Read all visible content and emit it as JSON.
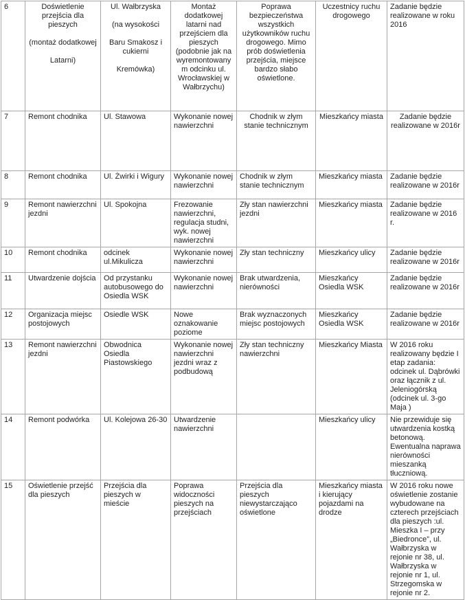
{
  "colors": {
    "table_border": "#a6a6a6",
    "text": "#232323",
    "background": "#ffffff"
  },
  "table": {
    "rows": [
      {
        "cells": [
          "6",
          "Doświetlenie przejścia dla pieszych\n\n(montaż dodatkowej\n\nLatarni)",
          "Ul. Wałbrzyska\n\n(na wysokości\n\nBaru Smakosz i cukierni\n\nKremówka)",
          "Montaż dodatkowej latarni nad przejściem dla pieszych (podobnie jak na wyremontowanym odcinku ul. Wrocławskiej w Wałbrzychu)",
          "Poprawa bezpieczeństwa wszystkich użytkowników ruchu drogowego. Mimo prób doświetlenia przejścia, miejsce bardzo słabo oświetlone.",
          "Uczestnicy ruchu drogowego",
          "Zadanie będzie realizowane w roku 2016"
        ]
      },
      {
        "cells": [
          "7",
          "Remont chodnika",
          "Ul. Stawowa",
          "Wykonanie nowej nawierzchni",
          "Chodnik w złym stanie technicznym",
          "Mieszkańcy miasta",
          "Zadanie będzie realizowane w 2016r"
        ]
      },
      {
        "cells": [
          "8",
          "Remont chodnika",
          "Ul. Żwirki i Wigury",
          "Wykonanie nowej nawierzchni",
          "Chodnik w złym stanie technicznym",
          "Mieszkańcy miasta",
          "Zadanie będzie realizowane w 2016r"
        ]
      },
      {
        "cells": [
          "9",
          "Remont nawierzchni jezdni",
          "Ul. Spokojna",
          "Frezowanie nawierzchni, regulacja studni, wyk. nowej nawierzchni",
          "Zły stan nawierzchni jezdni",
          "Mieszkańcy miasta",
          "Zadanie będzie realizowane w 2016 r."
        ]
      },
      {
        "cells": [
          "10",
          "Remont chodnika",
          "odcinek ul.Mikulicza",
          "Wykonanie nowej nawierzchni",
          "Zły stan techniczny",
          "Mieszkańcy ulicy",
          "Zadanie będzie realizowane w 2016r"
        ]
      },
      {
        "cells": [
          "11",
          "Utwardzenie dojścia",
          "Od przystanku autobusowego do Osiedla WSK",
          "Wykonanie nowej nawierzchni",
          "Brak utwardzenia, nierówności",
          "Mieszkańcy Osiedla WSK",
          "Zadanie będzie realizowane w 2016r"
        ]
      },
      {
        "cells": [
          "12",
          "Organizacja miejsc postojowych",
          "Osiedle WSK",
          "Nowe oznakowanie poziome",
          "Brak wyznaczonych miejsc postojowych",
          "Mieszkańcy Osiedla WSK",
          "Zadanie będzie realizowane w 2016r"
        ]
      },
      {
        "cells": [
          "13",
          "Remont nawierzchni jezdni",
          "Obwodnica Osiedla Piastowskiego",
          "Wykonanie nowej nawierzchni jezdni wraz z podbudową",
          "Zły stan techniczny nawierzchni",
          "Mieszkańcy Miasta",
          "W 2016 roku realizowany będzie I etap zadania: odcinek ul. Dąbrówki oraz łącznik z ul. Jeleniogórską (odcinek ul. 3-go Maja )"
        ]
      },
      {
        "cells": [
          "14",
          "Remont podwórka",
          "Ul. Kolejowa 26-30",
          "Utwardzenie nawierzchni",
          "",
          "Mieszkańcy ulicy",
          "Nie przewiduje się utwardzenia kostką betonową.\nEwentualna naprawa nierówności mieszanką tłuczniową."
        ]
      },
      {
        "cells": [
          "15",
          "Oświetlenie przejść dla pieszych",
          "Przejścia dla pieszych w mieście",
          "Poprawa widoczności pieszych na przejściach",
          "Przejścia dla pieszych niewystarczająco oświetlone",
          "Mieszkańcy miasta i kierujący pojazdami na drodze",
          "W 2016 roku nowe oświetlenie zostanie wybudowane na czterech przejściach dla pieszych :ul. Mieszka I – przy „Biedronce”, ul. Wałbrzyska w rejonie nr 38, ul. Wałbrzyska w rejonie nr 1, ul. Strzegomska w rejonie nr 2."
        ]
      }
    ]
  }
}
